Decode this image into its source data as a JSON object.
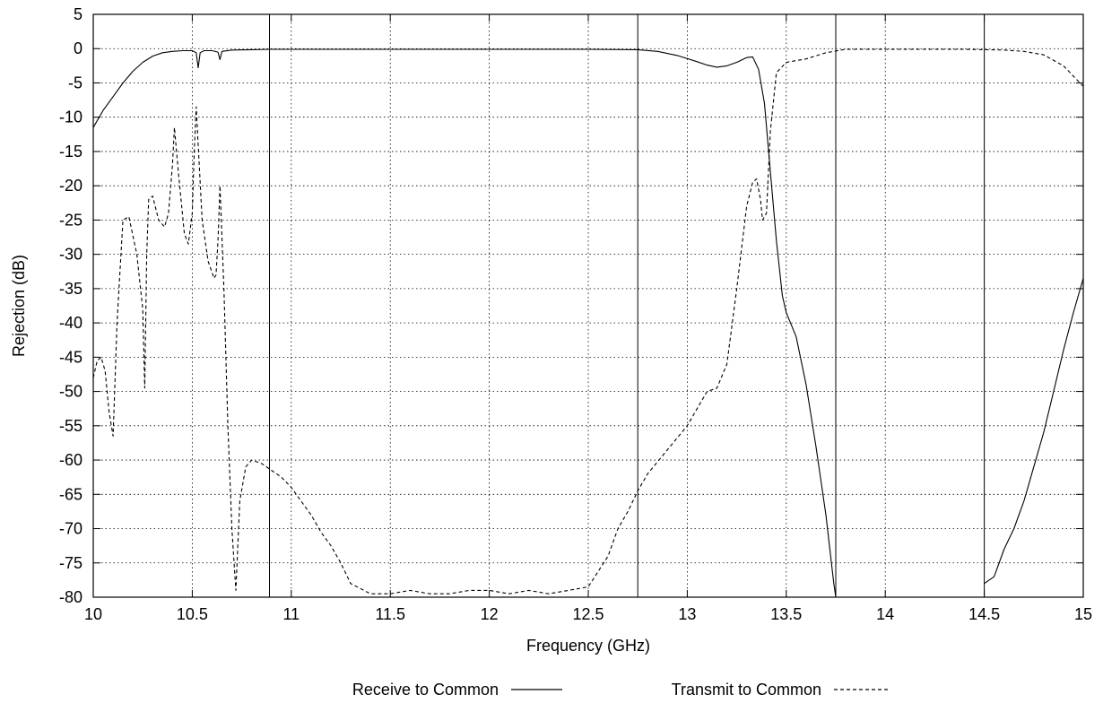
{
  "chart_data": {
    "type": "line",
    "xlabel": "Frequency (GHz)",
    "ylabel": "Rejection (dB)",
    "xlim": [
      10,
      15
    ],
    "ylim": [
      -80,
      5
    ],
    "xticks": [
      10,
      10.5,
      11,
      11.5,
      12,
      12.5,
      13,
      13.5,
      14,
      14.5,
      15
    ],
    "xtick_labels": [
      "10",
      "10.5",
      "11",
      "11.5",
      "12",
      "12.5",
      "13",
      "13.5",
      "14",
      "14.5",
      "15"
    ],
    "yticks": [
      5,
      0,
      -5,
      -10,
      -15,
      -20,
      -25,
      -30,
      -35,
      -40,
      -45,
      -50,
      -55,
      -60,
      -65,
      -70,
      -75,
      -80
    ],
    "ytick_labels": [
      "5",
      "0",
      "-5",
      "-10",
      "-15",
      "-20",
      "-25",
      "-30",
      "-35",
      "-40",
      "-45",
      "-50",
      "-55",
      "-60",
      "-65",
      "-70",
      "-75",
      "-80"
    ],
    "grid": true,
    "legend_position": "bottom-center",
    "vertical_markers": [
      10.89,
      12.75,
      13.75,
      14.5
    ],
    "series": [
      {
        "name": "Receive to Common",
        "style": "solid",
        "x": [
          10.0,
          10.05,
          10.1,
          10.15,
          10.2,
          10.25,
          10.3,
          10.35,
          10.4,
          10.45,
          10.5,
          10.52,
          10.53,
          10.54,
          10.56,
          10.6,
          10.63,
          10.64,
          10.65,
          10.7,
          10.8,
          10.89,
          11.0,
          11.5,
          12.0,
          12.5,
          12.75,
          12.85,
          12.95,
          13.05,
          13.1,
          13.15,
          13.2,
          13.25,
          13.3,
          13.33,
          13.36,
          13.39,
          13.42,
          13.45,
          13.48,
          13.5,
          13.55,
          13.6,
          13.65,
          13.7,
          13.72,
          13.74,
          13.75
        ],
        "y": [
          -11.5,
          -9.0,
          -7.0,
          -5.0,
          -3.3,
          -2.0,
          -1.1,
          -0.6,
          -0.4,
          -0.3,
          -0.3,
          -0.6,
          -2.8,
          -0.6,
          -0.3,
          -0.3,
          -0.5,
          -1.6,
          -0.4,
          -0.2,
          -0.15,
          -0.1,
          -0.1,
          -0.1,
          -0.1,
          -0.1,
          -0.15,
          -0.4,
          -1.0,
          -1.9,
          -2.4,
          -2.7,
          -2.5,
          -2.0,
          -1.3,
          -1.2,
          -3.0,
          -8.0,
          -18.0,
          -28.0,
          -36.0,
          -38.5,
          -42.0,
          -49.0,
          -58.0,
          -68.0,
          -73.0,
          -78.0,
          -80.0
        ]
      },
      {
        "name": "Receive to Common (tail)",
        "style": "solid",
        "x": [
          14.5,
          14.55,
          14.6,
          14.65,
          14.7,
          14.75,
          14.8,
          14.85,
          14.9,
          14.95,
          15.0
        ],
        "y": [
          -78.0,
          -77.0,
          -73.0,
          -70.0,
          -66.0,
          -61.0,
          -56.0,
          -50.0,
          -44.0,
          -38.5,
          -33.5
        ]
      },
      {
        "name": "Transmit to Common",
        "style": "dashed",
        "x": [
          10.0,
          10.02,
          10.04,
          10.06,
          10.08,
          10.1,
          10.12,
          10.15,
          10.18,
          10.22,
          10.25,
          10.26,
          10.27,
          10.28,
          10.3,
          10.33,
          10.36,
          10.38,
          10.4,
          10.41,
          10.43,
          10.46,
          10.48,
          10.5,
          10.51,
          10.52,
          10.53,
          10.55,
          10.58,
          10.61,
          10.62,
          10.63,
          10.64,
          10.66,
          10.68,
          10.7,
          10.72,
          10.74,
          10.77,
          10.8,
          10.85,
          10.9,
          10.95,
          11.0,
          11.05,
          11.1,
          11.15,
          11.2,
          11.25,
          11.3,
          11.4,
          11.5,
          11.6,
          11.7,
          11.8,
          11.9,
          12.0,
          12.1,
          12.2,
          12.3,
          12.4,
          12.5,
          12.6,
          12.65,
          12.7,
          12.75,
          12.8,
          12.9,
          13.0,
          13.05,
          13.1,
          13.15,
          13.2,
          13.25,
          13.3,
          13.33,
          13.35,
          13.37,
          13.38,
          13.4,
          13.42,
          13.45,
          13.5,
          13.6,
          13.7,
          13.8,
          14.0,
          14.2,
          14.4,
          14.6,
          14.7,
          14.8,
          14.9,
          15.0
        ],
        "y": [
          -48.0,
          -45.5,
          -45.0,
          -47.0,
          -53.0,
          -56.5,
          -40.0,
          -25.0,
          -24.5,
          -30.0,
          -38.0,
          -49.5,
          -30.0,
          -22.0,
          -21.5,
          -25.0,
          -26.0,
          -24.0,
          -17.0,
          -11.5,
          -18.0,
          -27.0,
          -28.5,
          -24.0,
          -15.0,
          -8.5,
          -14.0,
          -25.0,
          -31.0,
          -33.5,
          -33.0,
          -28.0,
          -20.0,
          -35.0,
          -55.0,
          -70.0,
          -79.0,
          -66.0,
          -61.0,
          -60.0,
          -60.5,
          -61.5,
          -62.5,
          -64.0,
          -66.0,
          -68.0,
          -70.5,
          -72.5,
          -75.0,
          -78.0,
          -79.5,
          -79.5,
          -79.0,
          -79.5,
          -79.5,
          -79.0,
          -79.0,
          -79.5,
          -79.0,
          -79.5,
          -79.0,
          -78.5,
          -74.0,
          -70.0,
          -67.5,
          -64.5,
          -62.0,
          -58.5,
          -55.0,
          -52.5,
          -50.0,
          -49.5,
          -46.0,
          -35.0,
          -23.0,
          -19.5,
          -19.0,
          -22.0,
          -25.0,
          -24.0,
          -12.0,
          -3.5,
          -2.0,
          -1.5,
          -0.6,
          -0.1,
          -0.1,
          -0.1,
          -0.1,
          -0.2,
          -0.4,
          -0.9,
          -2.5,
          -5.5
        ]
      }
    ]
  },
  "legend": {
    "receive_label": "Receive to Common",
    "transmit_label": "Transmit to Common"
  }
}
